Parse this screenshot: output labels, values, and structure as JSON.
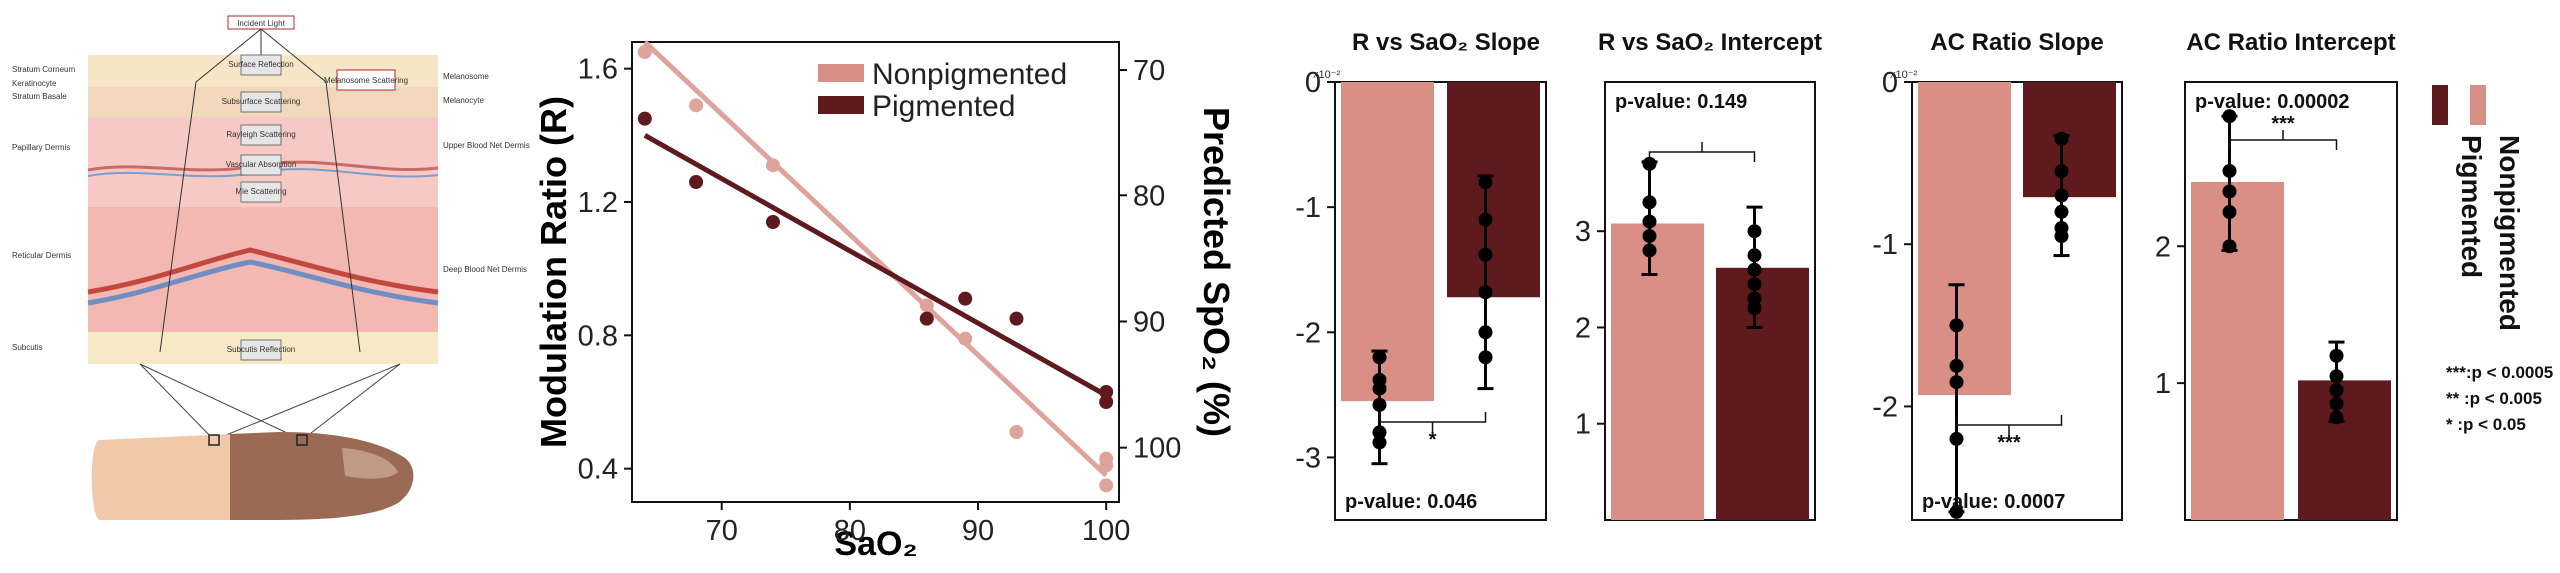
{
  "colors": {
    "nonpigmented": "#d98f86",
    "pigmented": "#5e1a1d",
    "nonpig_light": "#dea39b",
    "axis": "#111111"
  },
  "illustration": {
    "incident_light": "Incident Light",
    "surface_reflection": "Surface Reflection",
    "subsurface_scattering": "Subsurface Scattering",
    "rayleigh_scattering": "Rayleigh Scattering",
    "vascular_absorption": "Vascular Absorption",
    "mie_scattering": "Mie Scattering",
    "subcutis_reflection": "Subcutis Reflection",
    "melanosome_scattering": "Melanosome Scattering",
    "left_labels": [
      "Stratum Corneum",
      "Keratinocyte",
      "Stratum Basale",
      "Papillary Dermis",
      "Reticular Dermis",
      "Subcutis"
    ],
    "right_labels": [
      "Melanosome",
      "Melanocyte",
      "Upper Blood Net Dermis",
      "Deep Blood Net Dermis"
    ]
  },
  "chart_data": [
    {
      "type": "scatter",
      "xlabel": "SaO₂",
      "ylabel": "Modulation Ratio (R)",
      "y2label": "Predicted SpO₂ (%)",
      "xlim": [
        63,
        101
      ],
      "ylim": [
        0.3,
        1.68
      ],
      "xticks": [
        "70",
        "80",
        "90",
        "100"
      ],
      "yticks": [
        "0.4",
        "0.8",
        "1.2",
        "1.6"
      ],
      "y2ticks": [
        "70",
        "80",
        "90",
        "100"
      ],
      "legend_position": "top-right",
      "series": [
        {
          "name": "Nonpigmented",
          "points": [
            [
              64,
              1.65
            ],
            [
              68,
              1.49
            ],
            [
              74,
              1.31
            ],
            [
              86,
              0.89
            ],
            [
              89,
              0.79
            ],
            [
              93,
              0.51
            ],
            [
              100,
              0.43
            ],
            [
              100,
              0.41
            ],
            [
              100,
              0.35
            ]
          ],
          "fit": [
            [
              64,
              1.68
            ],
            [
              100,
              0.38
            ]
          ]
        },
        {
          "name": "Pigmented",
          "points": [
            [
              64,
              1.45
            ],
            [
              68,
              1.26
            ],
            [
              74,
              1.14
            ],
            [
              86,
              0.85
            ],
            [
              89,
              0.91
            ],
            [
              93,
              0.85
            ],
            [
              100,
              0.63
            ],
            [
              100,
              0.6
            ]
          ],
          "fit": [
            [
              64,
              1.4
            ],
            [
              100,
              0.62
            ]
          ]
        }
      ]
    },
    {
      "type": "bar",
      "title": "R vs SaO₂ Slope",
      "multiplier": "x10⁻²",
      "ylim": [
        -3.5,
        0
      ],
      "yticks": [
        "0",
        "-1",
        "-2",
        "-3"
      ],
      "categories": [
        "Nonpigmented",
        "Pigmented"
      ],
      "values": [
        -2.55,
        -1.72
      ],
      "points": [
        [
          -2.2,
          -2.38,
          -2.45,
          -2.58,
          -2.8,
          -2.88
        ],
        [
          -0.8,
          -1.1,
          -1.38,
          -1.68,
          -2.0,
          -2.2
        ]
      ],
      "error_range": [
        [
          -2.15,
          -3.05
        ],
        [
          -0.75,
          -2.45
        ]
      ],
      "significance": "*",
      "p_value": "p-value: 0.046"
    },
    {
      "type": "bar",
      "title": "R vs SaO₂ Intercept",
      "ylim": [
        0,
        4.55
      ],
      "yticks": [
        "1",
        "2",
        "3"
      ],
      "categories": [
        "Nonpigmented",
        "Pigmented"
      ],
      "values": [
        3.08,
        2.62
      ],
      "points": [
        [
          3.7,
          3.3,
          3.1,
          2.95,
          2.8
        ],
        [
          3.0,
          2.75,
          2.6,
          2.45,
          2.3,
          2.2
        ]
      ],
      "error_range": [
        [
          3.72,
          2.55
        ],
        [
          3.25,
          2.0
        ]
      ],
      "significance": "",
      "p_value": "p-value: 0.149"
    },
    {
      "type": "bar",
      "title": "AC Ratio Slope",
      "multiplier": "x10⁻²",
      "ylim": [
        -2.7,
        0
      ],
      "yticks": [
        "0",
        "-1",
        "-2"
      ],
      "categories": [
        "Nonpigmented",
        "Pigmented"
      ],
      "values": [
        -1.93,
        -0.71
      ],
      "points": [
        [
          -1.5,
          -1.75,
          -1.85,
          -2.2,
          -2.65
        ],
        [
          -0.35,
          -0.55,
          -0.7,
          -0.8,
          -0.9,
          -0.95
        ]
      ],
      "error_range": [
        [
          -1.25,
          -2.65
        ],
        [
          -0.33,
          -1.07
        ]
      ],
      "significance": "***",
      "p_value": "p-value: 0.0007"
    },
    {
      "type": "bar",
      "title": "AC Ratio Intercept",
      "ylim": [
        0,
        3.2
      ],
      "yticks": [
        "1",
        "2"
      ],
      "categories": [
        "Nonpigmented",
        "Pigmented"
      ],
      "values": [
        2.47,
        1.02
      ],
      "points": [
        [
          2.95,
          2.55,
          2.4,
          2.25,
          2.0
        ],
        [
          1.2,
          1.05,
          0.95,
          0.85,
          0.75
        ]
      ],
      "error_range": [
        [
          2.95,
          1.97
        ],
        [
          1.3,
          0.72
        ]
      ],
      "significance": "***",
      "p_value": "p-value: 0.00002"
    }
  ],
  "legend2": {
    "items": [
      "Nonpigmented",
      "Pigmented"
    ],
    "significance_notes": [
      "***:p < 0.0005",
      "** :p < 0.005",
      "*   :p < 0.05"
    ]
  }
}
